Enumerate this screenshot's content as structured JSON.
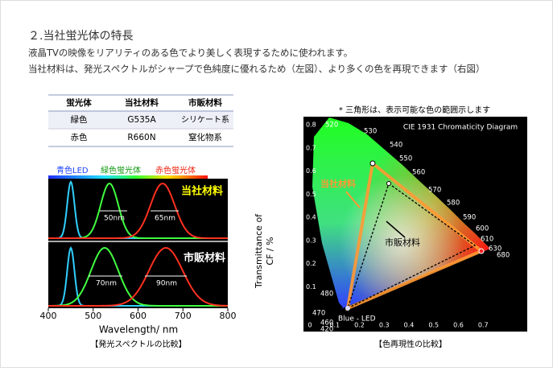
{
  "header": {
    "title": "２.当社蛍光体の特長",
    "lines": [
      "液晶TVの映像をリアリティのある色でより美しく表現するために使われます。",
      "当社材料は、発光スペクトルがシャープで色純度に優れるため（左図）、より多くの色を再現できます（右図）"
    ]
  },
  "table": {
    "header": [
      "蛍光体",
      "当社材料",
      "市販材料"
    ],
    "rows": [
      [
        "緑色",
        "G535A",
        "シリケート系"
      ],
      [
        "赤色",
        "R660N",
        "窒化物系"
      ]
    ]
  },
  "spectrum": {
    "legend": [
      "青色LED",
      "緑色蛍光体",
      "赤色蛍光体"
    ],
    "panels": [
      {
        "label": "当社材料",
        "widths": [
          "50nm",
          "65nm"
        ]
      },
      {
        "label": "市販材料",
        "widths": [
          "70nm",
          "90nm"
        ]
      }
    ],
    "xlabel": "Wavelength/ nm",
    "xlim": [
      400,
      800
    ],
    "xticks": [
      400,
      500,
      600,
      700,
      800
    ],
    "ylabel": [
      "Transmittance of",
      "CF / %"
    ],
    "caption": "【発光スペクトルの比較】"
  },
  "cie": {
    "note": "* 三角形は、表示可能な色の範囲示します",
    "title": "CIE 1931 Chromaticity Diagram",
    "xlim": [
      0,
      0.8
    ],
    "ylim": [
      0,
      0.8
    ],
    "xticks": [
      0,
      0.1,
      0.2,
      0.3,
      0.4,
      0.5,
      0.6,
      0.7
    ],
    "yticks": [
      0.1,
      0.2,
      0.3,
      0.4,
      0.5,
      0.6,
      0.7,
      0.8
    ],
    "wavelengths": [
      520,
      530,
      540,
      550,
      560,
      570,
      580,
      590,
      600,
      610,
      630,
      680,
      480,
      470,
      460,
      420
    ],
    "blue_label": "Blue - LED",
    "ours": "当社材料",
    "commercial": "市販材料",
    "caption": "【色再現性の比較】"
  }
}
